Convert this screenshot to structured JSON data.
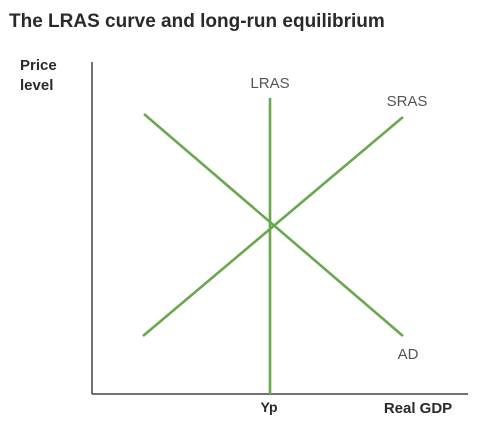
{
  "title": "The LRAS curve and long-run equilibrium",
  "y_axis_label_line1": "Price",
  "y_axis_label_line2": "level",
  "x_axis_label": "Real GDP",
  "x_tick_label": "Yp",
  "colors": {
    "curve": "#6aa84f",
    "axis": "#444444",
    "text": "#2a2a2a"
  },
  "curves": [
    {
      "name": "LRAS",
      "shape": "vertical line"
    },
    {
      "name": "SRAS",
      "shape": "upward-sloping line"
    },
    {
      "name": "AD",
      "shape": "downward-sloping line"
    }
  ]
}
